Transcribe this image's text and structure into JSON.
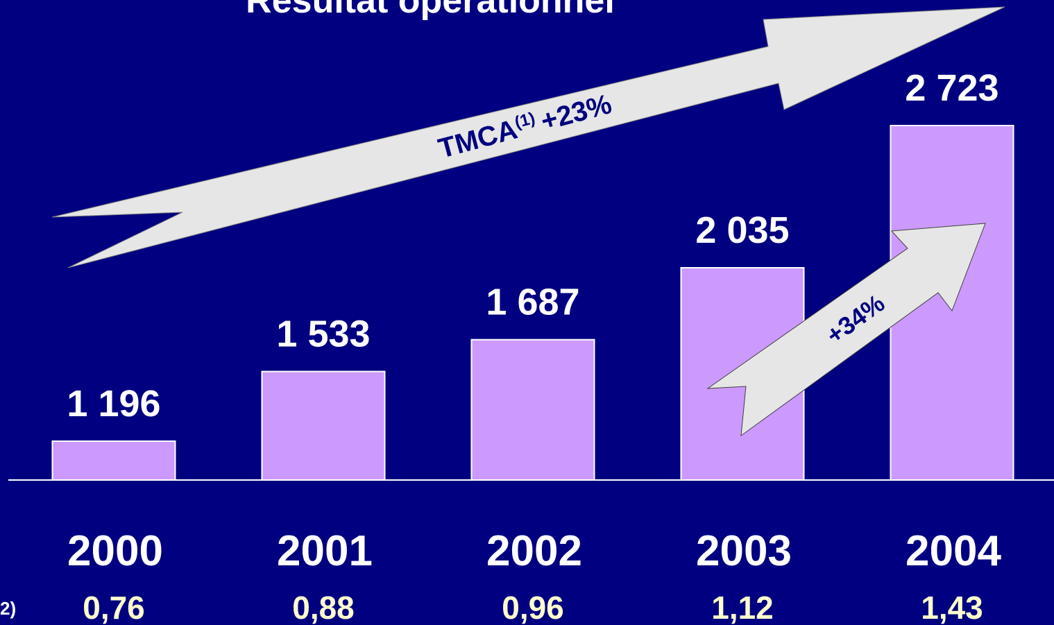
{
  "chart_data": {
    "type": "bar",
    "title": "Résultat opérationnel",
    "categories": [
      "2000",
      "2001",
      "2002",
      "2003",
      "2004"
    ],
    "values": [
      1196,
      1533,
      1687,
      2035,
      2723
    ],
    "value_labels": [
      "1 196",
      "1 533",
      "1 687",
      "2 035",
      "2 723"
    ],
    "color": "#cc99ff",
    "ylim": [
      1008,
      2723
    ],
    "row_label": "2)",
    "row": {
      "values": [
        0.76,
        0.88,
        0.96,
        1.12,
        1.43
      ],
      "value_labels": [
        "0,76",
        "0,88",
        "0,96",
        "1,12",
        "1,43"
      ]
    },
    "annotations": {
      "growth_main": "TMCA",
      "growth_note": "(1)",
      "growth_rate": "+23%",
      "last_growth": "+34%"
    }
  }
}
